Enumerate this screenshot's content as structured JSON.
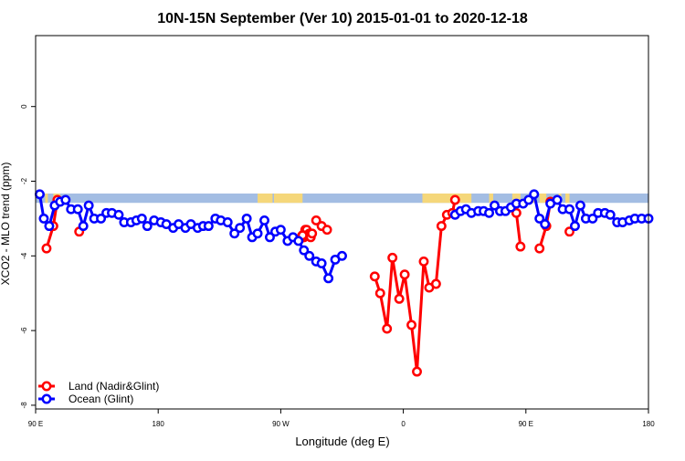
{
  "chart_data": {
    "type": "line",
    "title": "10N-15N September (Ver 10)   2015-01-01 to 2020-12-18",
    "xlabel": "Longitude (deg E)",
    "ylabel": "XCO2 - MLO trend (ppm)",
    "xlim": [
      90,
      540
    ],
    "ylim": [
      -8.1,
      1.9
    ],
    "x_ticks": [
      {
        "value": 90,
        "label": "90 E"
      },
      {
        "value": 180,
        "label": "180"
      },
      {
        "value": 270,
        "label": "90 W"
      },
      {
        "value": 360,
        "label": "0"
      },
      {
        "value": 450,
        "label": "90 E"
      },
      {
        "value": 540,
        "label": "180"
      }
    ],
    "y_ticks": [
      {
        "value": 0,
        "label": "0"
      },
      {
        "value": -2,
        "label": "-2"
      },
      {
        "value": -4,
        "label": "-4"
      },
      {
        "value": -6,
        "label": "-6"
      },
      {
        "value": -8,
        "label": "-8"
      }
    ],
    "legend_position": "bottom-left",
    "land_band": {
      "y_top": -2.33,
      "y_bottom": -2.58,
      "ocean_color": "#a3bde3",
      "land_color": "#f5d77a"
    },
    "land_segments": [
      [
        97,
        99
      ],
      [
        103,
        108
      ],
      [
        253,
        264
      ],
      [
        265,
        286
      ],
      [
        374,
        410
      ],
      [
        423,
        426
      ],
      [
        440,
        446
      ],
      [
        455,
        458
      ],
      [
        460,
        465
      ],
      [
        474,
        476
      ],
      [
        479,
        482
      ]
    ],
    "series": [
      {
        "name": "Land (Nadir&Glint)",
        "color": "#ff0000",
        "segments": [
          [
            [
              98,
              -3.8
            ],
            [
              103,
              -3.2
            ],
            [
              106,
              -2.5
            ]
          ],
          [
            [
              122,
              -3.35
            ]
          ],
          [
            [
              284,
              -3.55
            ],
            [
              286,
              -3.45
            ]
          ],
          [
            [
              286,
              -3.45
            ],
            [
              289,
              -3.35
            ]
          ],
          [
            [
              286,
              -3.45
            ],
            [
              288,
              -3.3
            ]
          ],
          [
            [
              286,
              -3.45
            ],
            [
              289,
              -3.3
            ]
          ],
          [
            [
              286,
              -3.45
            ],
            [
              286,
              -3.5
            ]
          ],
          [
            [
              286,
              -3.45
            ],
            [
              287,
              -3.45
            ]
          ],
          [
            [
              285,
              -3.5
            ],
            [
              286,
              -3.45
            ]
          ],
          [
            [
              286,
              -3.45
            ],
            [
              287,
              -3.5
            ]
          ],
          [
            [
              286,
              -3.45
            ],
            [
              289,
              -3.45
            ]
          ],
          [
            [
              286,
              -3.45
            ],
            [
              290,
              -3.45
            ]
          ],
          [
            [
              286,
              -3.45
            ],
            [
              291,
              -3.4
            ]
          ],
          [
            [
              286,
              -3.45
            ],
            [
              292,
              -3.4
            ]
          ],
          [
            [
              286,
              -3.45
            ],
            [
              292,
              -3.5
            ]
          ],
          [
            [
              286,
              -3.45
            ],
            [
              293,
              -3.4
            ]
          ],
          [
            [
              296,
              -3.05
            ],
            [
              300,
              -3.2
            ],
            [
              304,
              -3.3
            ]
          ],
          [
            [
              339,
              -4.55
            ],
            [
              343,
              -5.0
            ],
            [
              348,
              -5.95
            ],
            [
              352,
              -4.05
            ],
            [
              357,
              -5.15
            ],
            [
              361,
              -4.5
            ],
            [
              366,
              -5.85
            ],
            [
              370,
              -7.1
            ],
            [
              375,
              -4.15
            ],
            [
              379,
              -4.85
            ],
            [
              384,
              -4.75
            ],
            [
              388,
              -3.2
            ],
            [
              392,
              -2.9
            ],
            [
              396,
              -2.85
            ],
            [
              398,
              -2.5
            ]
          ],
          [
            [
              443,
              -2.85
            ],
            [
              446,
              -3.75
            ]
          ],
          [
            [
              460,
              -3.8
            ],
            [
              465,
              -3.2
            ],
            [
              468,
              -2.55
            ]
          ],
          [
            [
              482,
              -3.35
            ]
          ]
        ]
      },
      {
        "name": "Ocean (Glint)",
        "color": "#0000ff",
        "segments": [
          [
            [
              93,
              -2.35
            ],
            [
              96,
              -3.0
            ],
            [
              100,
              -3.2
            ],
            [
              104,
              -2.65
            ],
            [
              108,
              -2.55
            ],
            [
              112,
              -2.5
            ],
            [
              116,
              -2.75
            ],
            [
              121,
              -2.75
            ],
            [
              125,
              -3.2
            ],
            [
              129,
              -2.65
            ],
            [
              133,
              -3.0
            ],
            [
              138,
              -3.0
            ],
            [
              142,
              -2.85
            ],
            [
              146,
              -2.85
            ],
            [
              151,
              -2.9
            ],
            [
              155,
              -3.1
            ],
            [
              160,
              -3.1
            ],
            [
              164,
              -3.05
            ],
            [
              168,
              -3.0
            ],
            [
              172,
              -3.2
            ],
            [
              177,
              -3.05
            ],
            [
              182,
              -3.1
            ],
            [
              186,
              -3.15
            ],
            [
              191,
              -3.25
            ],
            [
              195,
              -3.15
            ],
            [
              200,
              -3.25
            ],
            [
              204,
              -3.15
            ],
            [
              209,
              -3.25
            ],
            [
              213,
              -3.2
            ],
            [
              217,
              -3.2
            ],
            [
              222,
              -3.0
            ],
            [
              226,
              -3.05
            ],
            [
              231,
              -3.1
            ],
            [
              236,
              -3.4
            ],
            [
              240,
              -3.25
            ],
            [
              245,
              -3.0
            ],
            [
              249,
              -3.5
            ],
            [
              253,
              -3.4
            ],
            [
              258,
              -3.05
            ],
            [
              262,
              -3.5
            ],
            [
              266,
              -3.35
            ],
            [
              270,
              -3.3
            ],
            [
              275,
              -3.6
            ],
            [
              279,
              -3.5
            ],
            [
              283,
              -3.6
            ],
            [
              287,
              -3.85
            ],
            [
              291,
              -4.0
            ],
            [
              296,
              -4.15
            ],
            [
              300,
              -4.2
            ],
            [
              305,
              -4.6
            ],
            [
              310,
              -4.1
            ],
            [
              315,
              -4.0
            ]
          ],
          [
            [
              398,
              -2.9
            ],
            [
              402,
              -2.8
            ],
            [
              406,
              -2.75
            ],
            [
              410,
              -2.85
            ],
            [
              415,
              -2.8
            ],
            [
              419,
              -2.8
            ],
            [
              423,
              -2.85
            ],
            [
              427,
              -2.65
            ],
            [
              431,
              -2.8
            ],
            [
              435,
              -2.8
            ],
            [
              439,
              -2.7
            ],
            [
              443,
              -2.6
            ],
            [
              448,
              -2.6
            ],
            [
              452,
              -2.5
            ],
            [
              456,
              -2.35
            ],
            [
              460,
              -3.0
            ],
            [
              464,
              -3.15
            ],
            [
              468,
              -2.6
            ],
            [
              473,
              -2.5
            ],
            [
              477,
              -2.75
            ],
            [
              482,
              -2.75
            ],
            [
              486,
              -3.2
            ],
            [
              490,
              -2.65
            ],
            [
              494,
              -3.0
            ],
            [
              499,
              -3.0
            ],
            [
              503,
              -2.85
            ],
            [
              508,
              -2.85
            ],
            [
              512,
              -2.9
            ],
            [
              517,
              -3.1
            ],
            [
              521,
              -3.1
            ],
            [
              526,
              -3.05
            ],
            [
              530,
              -3.0
            ],
            [
              535,
              -3.0
            ],
            [
              540,
              -3.0
            ]
          ]
        ]
      }
    ]
  }
}
